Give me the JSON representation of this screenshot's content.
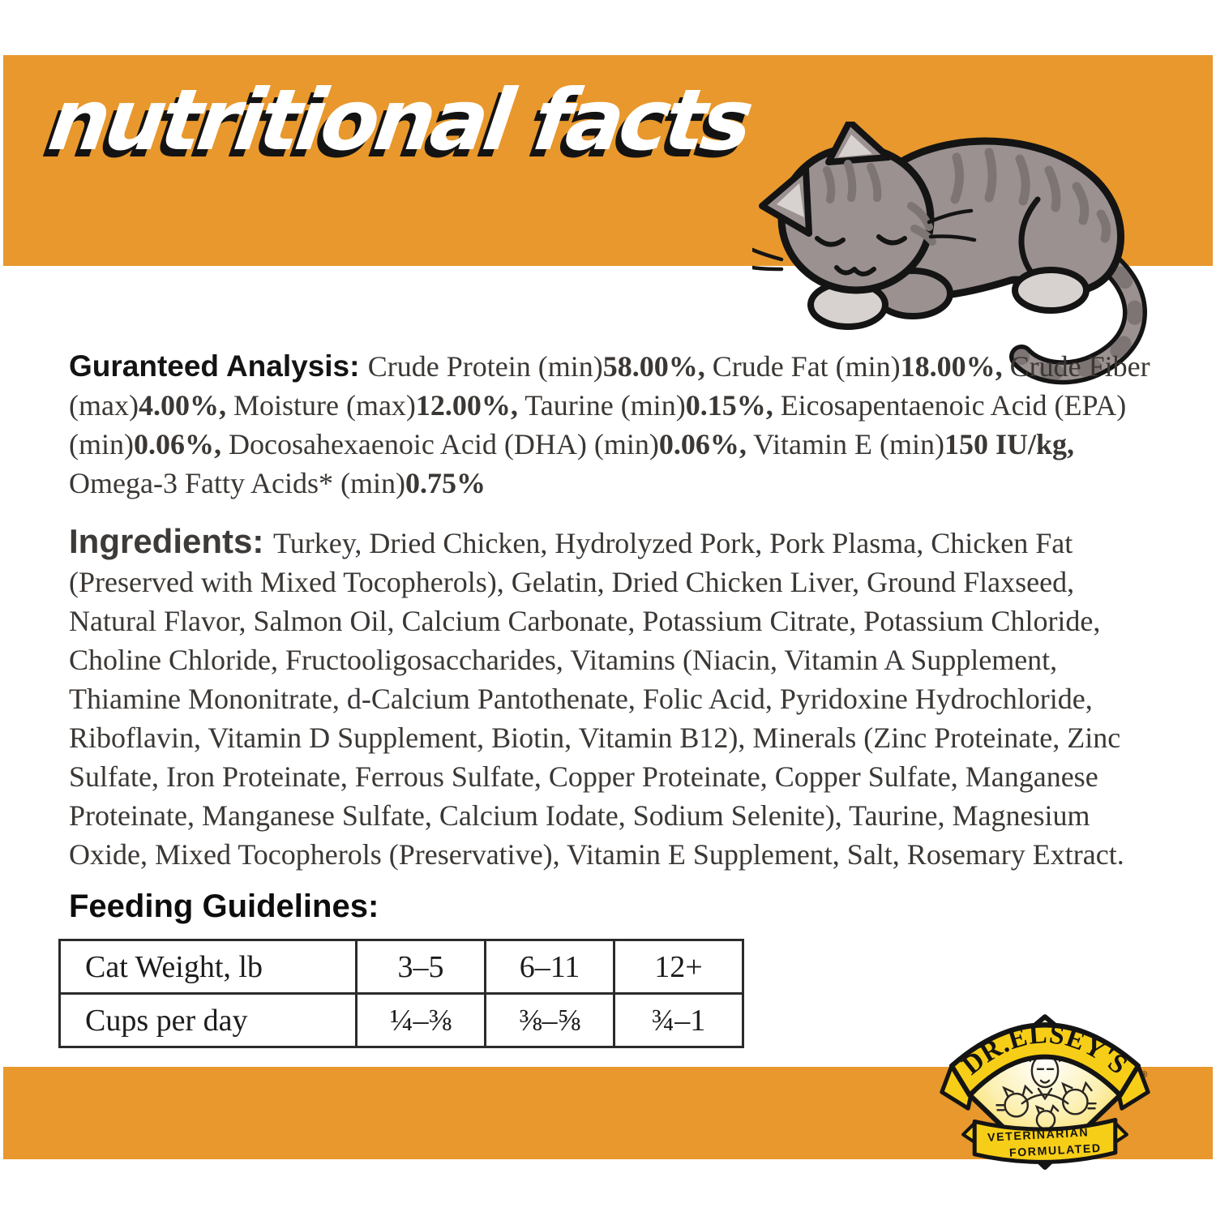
{
  "header": {
    "title": "nutritional facts"
  },
  "colors": {
    "band_orange": "#E8982C",
    "logo_yellow": "#F7CE17",
    "body_text": "#3B3734",
    "cat_gray": "#9A9190",
    "cat_stripe": "#7D7573",
    "cat_light": "#D7D2CF",
    "outline": "#141414"
  },
  "guaranteed_analysis": {
    "segments": [
      {
        "t": "Guranteed Analysis: ",
        "cls": "lead"
      },
      {
        "t": "Crude Protein (min)"
      },
      {
        "t": "58.00%,",
        "cls": "b"
      },
      {
        "t": " Crude Fat (min)"
      },
      {
        "t": "18.00%,",
        "cls": "b"
      },
      {
        "t": " Crude Fiber (max)"
      },
      {
        "t": "4.00%,",
        "cls": "b"
      },
      {
        "t": " Moisture (max)"
      },
      {
        "t": "12.00%,",
        "cls": "b"
      },
      {
        "t": " Taurine (min)"
      },
      {
        "t": "0.15%,",
        "cls": "b"
      },
      {
        "t": " Eicosapentaenoic Acid (EPA) (min)"
      },
      {
        "t": "0.06%,",
        "cls": "b"
      },
      {
        "t": " Docosahexaenoic Acid (DHA) (min)"
      },
      {
        "t": "0.06%,",
        "cls": "b"
      },
      {
        "t": " Vitamin E (min)"
      },
      {
        "t": "150 IU/kg,",
        "cls": "b"
      },
      {
        "t": " Omega-3 Fatty Acids* (min)"
      },
      {
        "t": "0.75%",
        "cls": "b"
      }
    ]
  },
  "ingredients": {
    "segments": [
      {
        "t": "Ingredients: ",
        "cls": "lead lead-lg"
      },
      {
        "t": "Turkey, Dried Chicken, Hydrolyzed Pork, Pork Plasma, Chicken Fat (Preserved with Mixed Tocopherols), Gelatin, Dried Chicken Liver, Ground Flaxseed, Natural Flavor, Salmon Oil, Calcium Carbonate, Potassium Citrate, Potassium Chloride, Choline Chloride, Fructooligosaccharides, Vitamins (Niacin, Vitamin A Supplement, Thiamine Mononitrate, d-Calcium Pantothenate, Folic Acid, Pyridoxine Hydrochloride, Riboflavin, Vitamin D Supplement, Biotin, Vitamin B12), Minerals (Zinc Proteinate, Zinc Sulfate, Iron Proteinate, Ferrous Sulfate, Copper Proteinate, Copper Sulfate, Manganese Proteinate, Manganese Sulfate, Calcium Iodate, Sodium Selenite), Taurine, Magnesium Oxide, Mixed Tocopherols (Preservative), Vitamin E Supplement, Salt, Rosemary Extract."
      }
    ]
  },
  "feeding": {
    "heading": "Feeding Guidelines:",
    "table": {
      "rows": [
        [
          "Cat Weight, lb",
          "3–5",
          "6–11",
          "12+"
        ],
        [
          "Cups per day",
          "¼–⅜",
          "⅜–⅝",
          "¾–1"
        ]
      ]
    }
  },
  "logo": {
    "brand": "DR.ELSEY'S",
    "registered": "®",
    "tagline_line1": "VETERINARIAN",
    "tagline_line2": "FORMULATED"
  }
}
